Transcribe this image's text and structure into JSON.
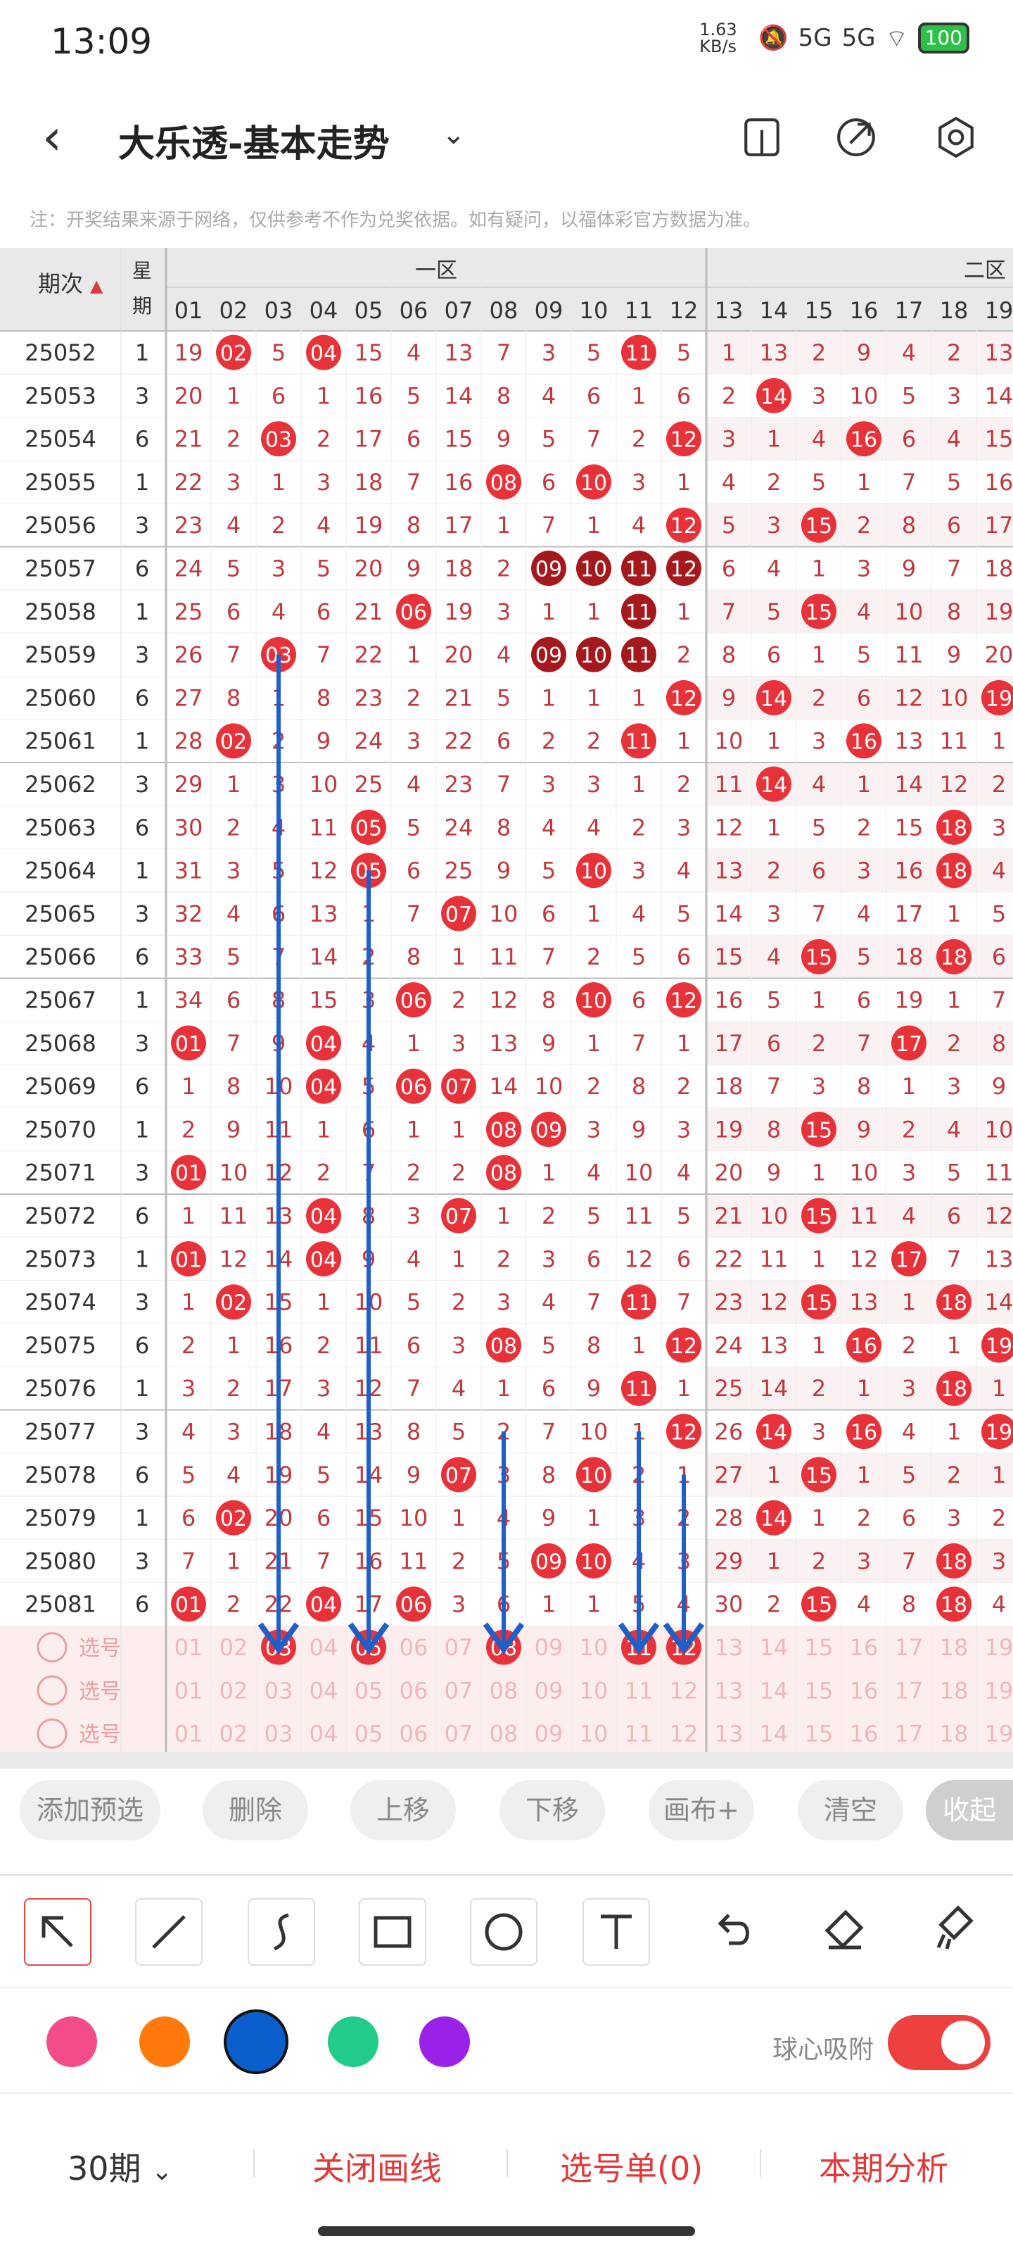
{
  "status_bar": {
    "time": "13:09",
    "net_speed": "1.63 KB/s",
    "signal1": "5G",
    "signal2": "5G",
    "battery": "100"
  },
  "header": {
    "title": "大乐透-基本走势",
    "back_icon": "chevron-left-icon",
    "dropdown_icon": "chevron-down-icon",
    "icons": [
      "phone-layout-icon",
      "share-icon",
      "settings-icon"
    ]
  },
  "note": "注：开奖结果来源于网络，仅供参考不作为兑奖依据。如有疑问，以福体彩官方数据为准。",
  "table": {
    "period_header": "期次",
    "weekday_header": "星期",
    "zone1": "一区",
    "zone2": "二区",
    "columns": [
      "01",
      "02",
      "03",
      "04",
      "05",
      "06",
      "07",
      "08",
      "09",
      "10",
      "11",
      "12",
      "13",
      "14",
      "15",
      "16",
      "17",
      "18",
      "19"
    ],
    "rows": [
      {
        "p": "25052",
        "w": "1",
        "v": [
          "19",
          "02",
          "5",
          "04",
          "15",
          "4",
          "13",
          "7",
          "3",
          "5",
          "11",
          "5",
          "1",
          "13",
          "2",
          "9",
          "4",
          "2",
          "13"
        ],
        "h": [
          2,
          4,
          11
        ]
      },
      {
        "p": "25053",
        "w": "3",
        "v": [
          "20",
          "1",
          "6",
          "1",
          "16",
          "5",
          "14",
          "8",
          "4",
          "6",
          "1",
          "6",
          "2",
          "14",
          "3",
          "10",
          "5",
          "3",
          "14"
        ],
        "h": [
          14
        ]
      },
      {
        "p": "25054",
        "w": "6",
        "v": [
          "21",
          "2",
          "03",
          "2",
          "17",
          "6",
          "15",
          "9",
          "5",
          "7",
          "2",
          "12",
          "3",
          "1",
          "4",
          "16",
          "6",
          "4",
          "15"
        ],
        "h": [
          3,
          12,
          16
        ]
      },
      {
        "p": "25055",
        "w": "1",
        "v": [
          "22",
          "3",
          "1",
          "3",
          "18",
          "7",
          "16",
          "08",
          "6",
          "10",
          "3",
          "1",
          "4",
          "2",
          "5",
          "1",
          "7",
          "5",
          "16"
        ],
        "h": [
          8,
          10
        ]
      },
      {
        "p": "25056",
        "w": "3",
        "v": [
          "23",
          "4",
          "2",
          "4",
          "19",
          "8",
          "17",
          "1",
          "7",
          "1",
          "4",
          "12",
          "5",
          "3",
          "15",
          "2",
          "8",
          "6",
          "17"
        ],
        "h": [
          12,
          15
        ]
      },
      {
        "p": "25057",
        "w": "6",
        "v": [
          "24",
          "5",
          "3",
          "5",
          "20",
          "9",
          "18",
          "2",
          "09",
          "10",
          "11",
          "12",
          "6",
          "4",
          "1",
          "3",
          "9",
          "7",
          "18"
        ],
        "h": [
          9,
          10,
          11,
          12
        ],
        "dark": true
      },
      {
        "p": "25058",
        "w": "1",
        "v": [
          "25",
          "6",
          "4",
          "6",
          "21",
          "06",
          "19",
          "3",
          "1",
          "1",
          "11",
          "1",
          "7",
          "5",
          "15",
          "4",
          "10",
          "8",
          "19"
        ],
        "h": [
          6,
          11,
          15
        ],
        "dk": [
          11
        ]
      },
      {
        "p": "25059",
        "w": "3",
        "v": [
          "26",
          "7",
          "03",
          "7",
          "22",
          "1",
          "20",
          "4",
          "09",
          "10",
          "11",
          "2",
          "8",
          "6",
          "1",
          "5",
          "11",
          "9",
          "20"
        ],
        "h": [
          3,
          9,
          10,
          11
        ],
        "dk": [
          9,
          10,
          11
        ]
      },
      {
        "p": "25060",
        "w": "6",
        "v": [
          "27",
          "8",
          "1",
          "8",
          "23",
          "2",
          "21",
          "5",
          "1",
          "1",
          "1",
          "12",
          "9",
          "14",
          "2",
          "6",
          "12",
          "10",
          "19"
        ],
        "h": [
          12,
          14,
          19
        ]
      },
      {
        "p": "25061",
        "w": "1",
        "v": [
          "28",
          "02",
          "2",
          "9",
          "24",
          "3",
          "22",
          "6",
          "2",
          "2",
          "11",
          "1",
          "10",
          "1",
          "3",
          "16",
          "13",
          "11",
          "1"
        ],
        "h": [
          2,
          11,
          16
        ]
      },
      {
        "p": "25062",
        "w": "3",
        "v": [
          "29",
          "1",
          "3",
          "10",
          "25",
          "4",
          "23",
          "7",
          "3",
          "3",
          "1",
          "2",
          "11",
          "14",
          "4",
          "1",
          "14",
          "12",
          "2"
        ],
        "h": [
          14
        ]
      },
      {
        "p": "25063",
        "w": "6",
        "v": [
          "30",
          "2",
          "4",
          "11",
          "05",
          "5",
          "24",
          "8",
          "4",
          "4",
          "2",
          "3",
          "12",
          "1",
          "5",
          "2",
          "15",
          "18",
          "3"
        ],
        "h": [
          5,
          18
        ]
      },
      {
        "p": "25064",
        "w": "1",
        "v": [
          "31",
          "3",
          "5",
          "12",
          "05",
          "6",
          "25",
          "9",
          "5",
          "10",
          "3",
          "4",
          "13",
          "2",
          "6",
          "3",
          "16",
          "18",
          "4"
        ],
        "h": [
          5,
          10,
          18
        ]
      },
      {
        "p": "25065",
        "w": "3",
        "v": [
          "32",
          "4",
          "6",
          "13",
          "1",
          "7",
          "07",
          "10",
          "6",
          "1",
          "4",
          "5",
          "14",
          "3",
          "7",
          "4",
          "17",
          "1",
          "5"
        ],
        "h": [
          7
        ]
      },
      {
        "p": "25066",
        "w": "6",
        "v": [
          "33",
          "5",
          "7",
          "14",
          "2",
          "8",
          "1",
          "11",
          "7",
          "2",
          "5",
          "6",
          "15",
          "4",
          "15",
          "5",
          "18",
          "18",
          "6"
        ],
        "h": [
          15,
          18
        ]
      },
      {
        "p": "25067",
        "w": "1",
        "v": [
          "34",
          "6",
          "8",
          "15",
          "3",
          "06",
          "2",
          "12",
          "8",
          "10",
          "6",
          "12",
          "16",
          "5",
          "1",
          "6",
          "19",
          "1",
          "7"
        ],
        "h": [
          6,
          10,
          12
        ]
      },
      {
        "p": "25068",
        "w": "3",
        "v": [
          "01",
          "7",
          "9",
          "04",
          "4",
          "1",
          "3",
          "13",
          "9",
          "1",
          "7",
          "1",
          "17",
          "6",
          "2",
          "7",
          "17",
          "2",
          "8"
        ],
        "h": [
          1,
          4,
          17
        ]
      },
      {
        "p": "25069",
        "w": "6",
        "v": [
          "1",
          "8",
          "10",
          "04",
          "5",
          "06",
          "07",
          "14",
          "10",
          "2",
          "8",
          "2",
          "18",
          "7",
          "3",
          "8",
          "1",
          "3",
          "9"
        ],
        "h": [
          4,
          6,
          7
        ]
      },
      {
        "p": "25070",
        "w": "1",
        "v": [
          "2",
          "9",
          "11",
          "1",
          "6",
          "1",
          "1",
          "08",
          "09",
          "3",
          "9",
          "3",
          "19",
          "8",
          "15",
          "9",
          "2",
          "4",
          "10"
        ],
        "h": [
          8,
          9,
          15
        ]
      },
      {
        "p": "25071",
        "w": "3",
        "v": [
          "01",
          "10",
          "12",
          "2",
          "7",
          "2",
          "2",
          "08",
          "1",
          "4",
          "10",
          "4",
          "20",
          "9",
          "1",
          "10",
          "3",
          "5",
          "11"
        ],
        "h": [
          1,
          8
        ]
      },
      {
        "p": "25072",
        "w": "6",
        "v": [
          "1",
          "11",
          "13",
          "04",
          "8",
          "3",
          "07",
          "1",
          "2",
          "5",
          "11",
          "5",
          "21",
          "10",
          "15",
          "11",
          "4",
          "6",
          "12"
        ],
        "h": [
          4,
          7,
          15
        ]
      },
      {
        "p": "25073",
        "w": "1",
        "v": [
          "01",
          "12",
          "14",
          "04",
          "9",
          "4",
          "1",
          "2",
          "3",
          "6",
          "12",
          "6",
          "22",
          "11",
          "1",
          "12",
          "17",
          "7",
          "13"
        ],
        "h": [
          1,
          4,
          17
        ]
      },
      {
        "p": "25074",
        "w": "3",
        "v": [
          "1",
          "02",
          "15",
          "1",
          "10",
          "5",
          "2",
          "3",
          "4",
          "7",
          "11",
          "7",
          "23",
          "12",
          "15",
          "13",
          "1",
          "18",
          "14"
        ],
        "h": [
          2,
          11,
          15,
          18
        ]
      },
      {
        "p": "25075",
        "w": "6",
        "v": [
          "2",
          "1",
          "16",
          "2",
          "11",
          "6",
          "3",
          "08",
          "5",
          "8",
          "1",
          "12",
          "24",
          "13",
          "1",
          "16",
          "2",
          "1",
          "19"
        ],
        "h": [
          8,
          12,
          16,
          19
        ]
      },
      {
        "p": "25076",
        "w": "1",
        "v": [
          "3",
          "2",
          "17",
          "3",
          "12",
          "7",
          "4",
          "1",
          "6",
          "9",
          "11",
          "1",
          "25",
          "14",
          "2",
          "1",
          "3",
          "18",
          "1"
        ],
        "h": [
          11,
          18
        ]
      },
      {
        "p": "25077",
        "w": "3",
        "v": [
          "4",
          "3",
          "18",
          "4",
          "13",
          "8",
          "5",
          "2",
          "7",
          "10",
          "1",
          "12",
          "26",
          "14",
          "3",
          "16",
          "4",
          "1",
          "19"
        ],
        "h": [
          12,
          14,
          16,
          19
        ]
      },
      {
        "p": "25078",
        "w": "6",
        "v": [
          "5",
          "4",
          "19",
          "5",
          "14",
          "9",
          "07",
          "3",
          "8",
          "10",
          "2",
          "1",
          "27",
          "1",
          "15",
          "1",
          "5",
          "2",
          "1"
        ],
        "h": [
          7,
          10,
          15
        ]
      },
      {
        "p": "25079",
        "w": "1",
        "v": [
          "6",
          "02",
          "20",
          "6",
          "15",
          "10",
          "1",
          "4",
          "9",
          "1",
          "3",
          "2",
          "28",
          "14",
          "1",
          "2",
          "6",
          "3",
          "2"
        ],
        "h": [
          2,
          14
        ]
      },
      {
        "p": "25080",
        "w": "3",
        "v": [
          "7",
          "1",
          "21",
          "7",
          "16",
          "11",
          "2",
          "5",
          "09",
          "10",
          "4",
          "3",
          "29",
          "1",
          "2",
          "3",
          "7",
          "18",
          "3"
        ],
        "h": [
          9,
          10,
          18
        ]
      },
      {
        "p": "25081",
        "w": "6",
        "v": [
          "01",
          "2",
          "22",
          "04",
          "17",
          "06",
          "3",
          "6",
          "1",
          "1",
          "5",
          "4",
          "30",
          "2",
          "15",
          "4",
          "8",
          "18",
          "4"
        ],
        "h": [
          1,
          4,
          6,
          15,
          18
        ]
      }
    ],
    "select_label": "选号",
    "selected": [
      3,
      5,
      8,
      11,
      12
    ]
  },
  "controls": [
    "添加预选",
    "删除",
    "上移",
    "下移",
    "画布+",
    "清空",
    "收起"
  ],
  "tools": [
    "arrow-select-icon",
    "line-icon",
    "curve-icon",
    "rectangle-icon",
    "circle-icon",
    "text-icon",
    "undo-icon",
    "eraser-icon",
    "clear-brush-icon"
  ],
  "colors": [
    "#f24d8a",
    "#ff7a0a",
    "#0a5fcc",
    "#22cc88",
    "#9a22e8"
  ],
  "snap": {
    "label": "球心吸附",
    "on": true
  },
  "bottom": {
    "periods": "30期",
    "close_lines": "关闭画线",
    "selection": "选号单(0)",
    "analysis": "本期分析"
  }
}
